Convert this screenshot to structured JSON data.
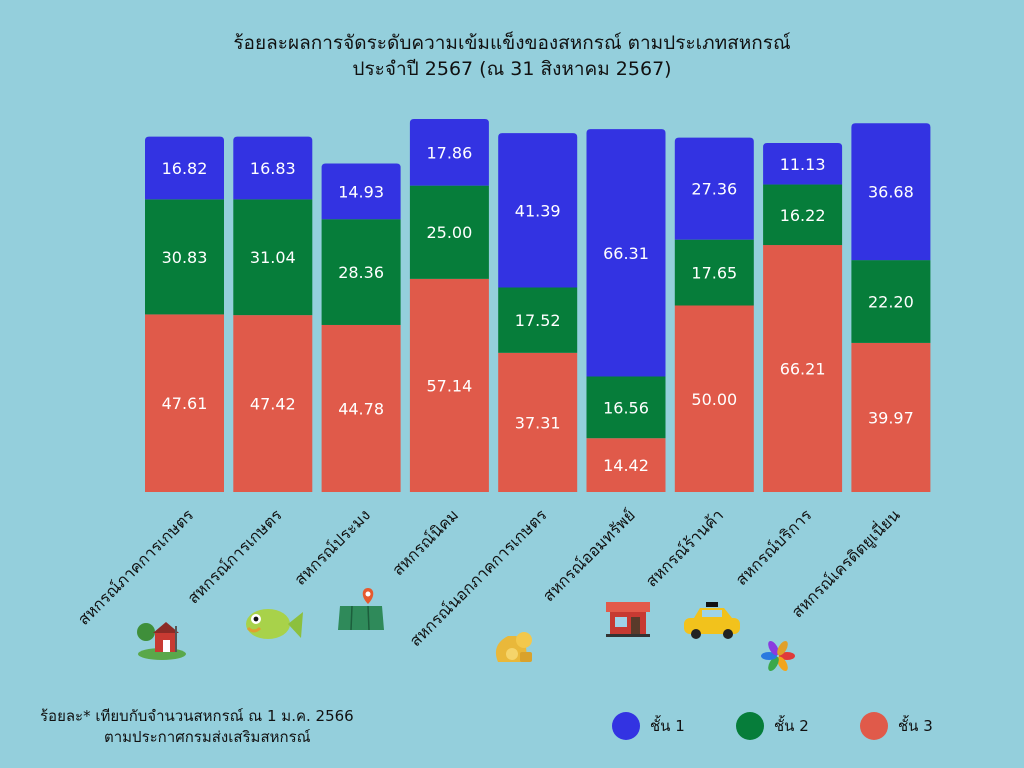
{
  "title_lines": [
    "ร้อยละผลการจัดระดับความเข้มแข็งของสหกรณ์ ตามประเภทสหกรณ์",
    "ประจำปี 2567 (ณ 31 สิงหาคม 2567)"
  ],
  "footnote": {
    "line1": "ร้อยละ* เทียบกับจำนวนสหกรณ์ ณ 1 ม.ค. 2566",
    "line2": "ตามประกาศกรมส่งเสริมสหกรณ์"
  },
  "colors": {
    "background": "#94cfdc",
    "tier1": "#3333e2",
    "tier2": "#067d3a",
    "tier3": "#e05a4a"
  },
  "chart_data": {
    "type": "bar",
    "stacked": true,
    "categories": [
      "สหกรณ์ภาคการเกษตร",
      "สหกรณ์การเกษตร",
      "สหกรณ์ประมง",
      "สหกรณ์นิคม",
      "สหกรณ์นอกภาคการเกษตร",
      "สหกรณ์ออมทรัพย์",
      "สหกรณ์ร้านค้า",
      "สหกรณ์บริการ",
      "สหกรณ์เครดิตยูเนี่ยน"
    ],
    "category_icons": [
      "farm-barn-icon",
      "fish-icon",
      "map-pin-icon",
      "",
      "coin-bag-icon",
      "",
      "shop-icon",
      "taxi-icon",
      "credit-union-logo-icon"
    ],
    "series": [
      {
        "name": "ชั้น 3",
        "color": "#e05a4a",
        "values": [
          47.61,
          47.42,
          44.78,
          57.14,
          37.31,
          14.42,
          50.0,
          66.21,
          39.97
        ]
      },
      {
        "name": "ชั้น 2",
        "color": "#067d3a",
        "values": [
          30.83,
          31.04,
          28.36,
          25.0,
          17.52,
          16.56,
          17.65,
          16.22,
          22.2
        ]
      },
      {
        "name": "ชั้น 1",
        "color": "#3333e2",
        "values": [
          16.82,
          16.83,
          14.93,
          17.86,
          41.39,
          66.31,
          27.36,
          11.13,
          36.68
        ]
      }
    ],
    "data_labels": true,
    "legend_position": "bottom-right",
    "grid": false
  },
  "legend": [
    {
      "label": "ชั้น 1",
      "color": "#3333e2"
    },
    {
      "label": "ชั้น 2",
      "color": "#067d3a"
    },
    {
      "label": "ชั้น 3",
      "color": "#e05a4a"
    }
  ]
}
